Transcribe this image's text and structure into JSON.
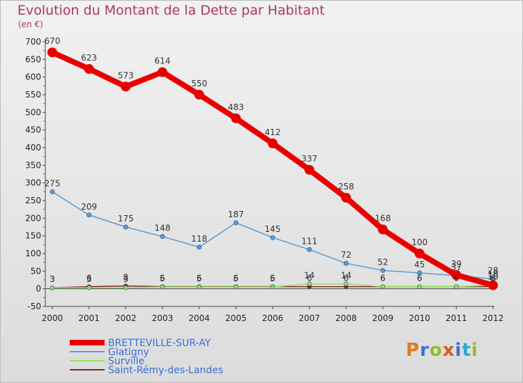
{
  "header": {
    "title": "Evolution du Montant de la Dette par Habitant",
    "subtitle": "(en €)"
  },
  "logo": {
    "text": "Proxiti",
    "colors": [
      "#e07b1e",
      "#3b6fcf",
      "#8dbf2a",
      "#e0531e",
      "#3b6fcf",
      "#2aa7d8",
      "#8dbf2a"
    ]
  },
  "chart_data": {
    "type": "line",
    "title": "Evolution du Montant de la Dette par Habitant",
    "subtitle": "(en €)",
    "xlabel": "",
    "ylabel": "",
    "x": [
      "2000",
      "2001",
      "2002",
      "2003",
      "2004",
      "2005",
      "2006",
      "2007",
      "2008",
      "2009",
      "2010",
      "2011",
      "2012"
    ],
    "ylim": [
      -50,
      700
    ],
    "yticks": [
      -50,
      0,
      50,
      100,
      150,
      200,
      250,
      300,
      350,
      400,
      450,
      500,
      550,
      600,
      650,
      700
    ],
    "grid": false,
    "legend": "bottom-left",
    "series": [
      {
        "name": "BRETTEVILLE-SUR-AY",
        "color": "#e80000",
        "values": [
          670,
          623,
          573,
          614,
          550,
          483,
          412,
          337,
          258,
          168,
          100,
          39,
          10
        ]
      },
      {
        "name": "Glatigny",
        "color": "#5b9bd5",
        "values": [
          275,
          209,
          175,
          148,
          118,
          187,
          145,
          111,
          72,
          52,
          45,
          37,
          28
        ]
      },
      {
        "name": "Surville",
        "color": "#8fe35a",
        "values": [
          3,
          3,
          3,
          5,
          5,
          5,
          5,
          14,
          14,
          6,
          6,
          6,
          10
        ]
      },
      {
        "name": "Saint-Rémy-des-Landes",
        "color": "#7a2a2a",
        "values": [
          3,
          6,
          8,
          6,
          6,
          6,
          6,
          6,
          6,
          6,
          6,
          6,
          6
        ]
      }
    ]
  }
}
